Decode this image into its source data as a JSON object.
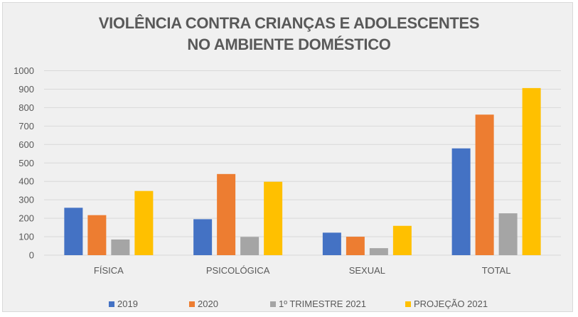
{
  "chart_data": {
    "type": "bar",
    "title": "VIOLÊNCIA CONTRA CRIANÇAS E ADOLESCENTES NO AMBIENTE DOMÉSTICO",
    "title_lines": [
      "VIOLÊNCIA CONTRA CRIANÇAS E ADOLESCENTES",
      "NO AMBIENTE DOMÉSTICO"
    ],
    "xlabel": "",
    "ylabel": "",
    "categories": [
      "FÍSICA",
      "PSICOLÓGICA",
      "SEXUAL",
      "TOTAL"
    ],
    "series": [
      {
        "name": "2019",
        "color": "#4472C4",
        "values": [
          257,
          195,
          122,
          579
        ]
      },
      {
        "name": "2020",
        "color": "#ED7D31",
        "values": [
          217,
          440,
          100,
          762
        ]
      },
      {
        "name": "1º TRIMESTRE 2021",
        "color": "#A5A5A5",
        "values": [
          85,
          99,
          38,
          227
        ]
      },
      {
        "name": "PROJEÇÃO 2021",
        "color": "#FFC000",
        "values": [
          348,
          398,
          159,
          906
        ]
      }
    ],
    "ylim": [
      0,
      1000
    ],
    "yticks": [
      0,
      100,
      200,
      300,
      400,
      500,
      600,
      700,
      800,
      900,
      1000
    ],
    "grid": true,
    "legend_position": "bottom"
  }
}
